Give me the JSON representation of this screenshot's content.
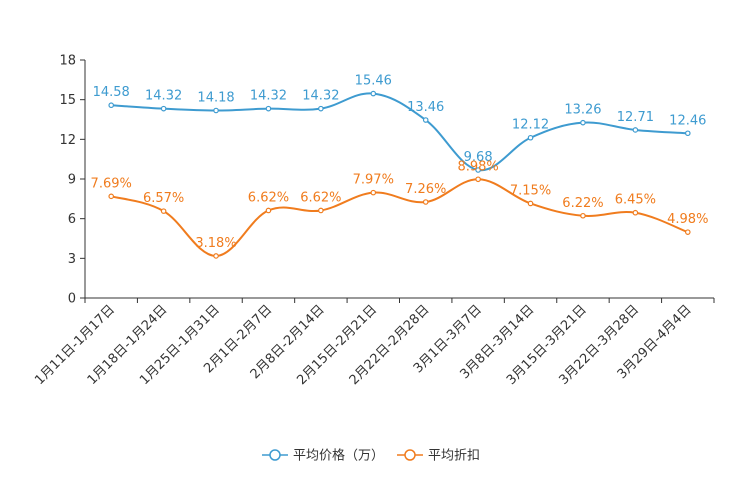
{
  "chart_data": {
    "type": "line",
    "title": "",
    "xlabel": "",
    "ylabel": "",
    "ylim": [
      0,
      18
    ],
    "yticks": [
      0,
      3,
      6,
      9,
      12,
      15,
      18
    ],
    "grid": false,
    "legend_position": "bottom-center",
    "categories": [
      "1月11日-1月17日",
      "1月18日-1月24日",
      "1月25日-1月31日",
      "2月1日-2月7日",
      "2月8日-2月14日",
      "2月15日-2月21日",
      "2月22日-2月28日",
      "3月1日-3月7日",
      "3月8日-3月14日",
      "3月15日-3月21日",
      "3月22日-3月28日",
      "3月29日-4月4日"
    ],
    "series": [
      {
        "name": "平均价格（万）",
        "color": "#3e9bd0",
        "values": [
          14.58,
          14.32,
          14.18,
          14.32,
          14.32,
          15.46,
          13.46,
          9.68,
          12.12,
          13.26,
          12.71,
          12.46
        ],
        "labels": [
          "14.58",
          "14.32",
          "14.18",
          "14.32",
          "14.32",
          "15.46",
          "13.46",
          "9.68",
          "12.12",
          "13.26",
          "12.71",
          "12.46"
        ]
      },
      {
        "name": "平均折扣",
        "color": "#f07c1e",
        "values": [
          7.69,
          6.57,
          3.18,
          6.62,
          6.62,
          7.97,
          7.26,
          8.98,
          7.15,
          6.22,
          6.45,
          4.98
        ],
        "labels": [
          "7.69%",
          "6.57%",
          "3.18%",
          "6.62%",
          "6.62%",
          "7.97%",
          "7.26%",
          "8.98%",
          "7.15%",
          "6.22%",
          "6.45%",
          "4.98%"
        ]
      }
    ]
  }
}
